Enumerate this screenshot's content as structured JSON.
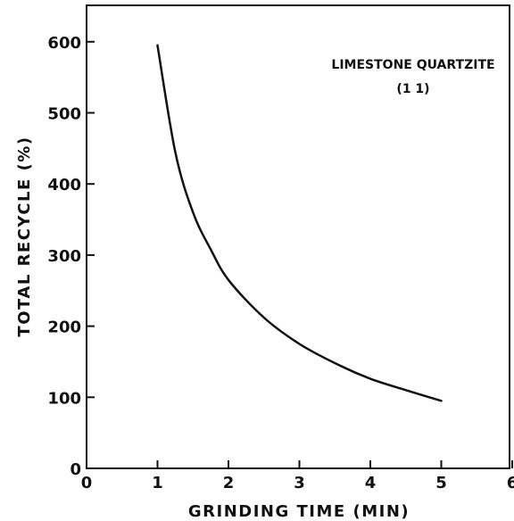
{
  "chart_data": {
    "type": "line",
    "xlabel": "GRINDING TIME (MIN)",
    "ylabel": "TOTAL RECYCLE (%)",
    "xlim": [
      0,
      6
    ],
    "ylim": [
      0,
      650
    ],
    "xticks": [
      "0",
      "1",
      "2",
      "3",
      "4",
      "5",
      "6"
    ],
    "yticks": [
      "0",
      "100",
      "200",
      "300",
      "400",
      "500",
      "600"
    ],
    "grid": false,
    "annotation": {
      "line1": "LIMESTONE  QUARTZITE",
      "line2": "(1    1)"
    },
    "series": [
      {
        "x": [
          1.0,
          1.25,
          1.5,
          1.75,
          2.0,
          2.5,
          3.0,
          3.5,
          4.0,
          4.5,
          5.0
        ],
        "y": [
          595,
          445,
          360,
          308,
          265,
          212,
          175,
          148,
          126,
          110,
          95
        ]
      }
    ]
  }
}
